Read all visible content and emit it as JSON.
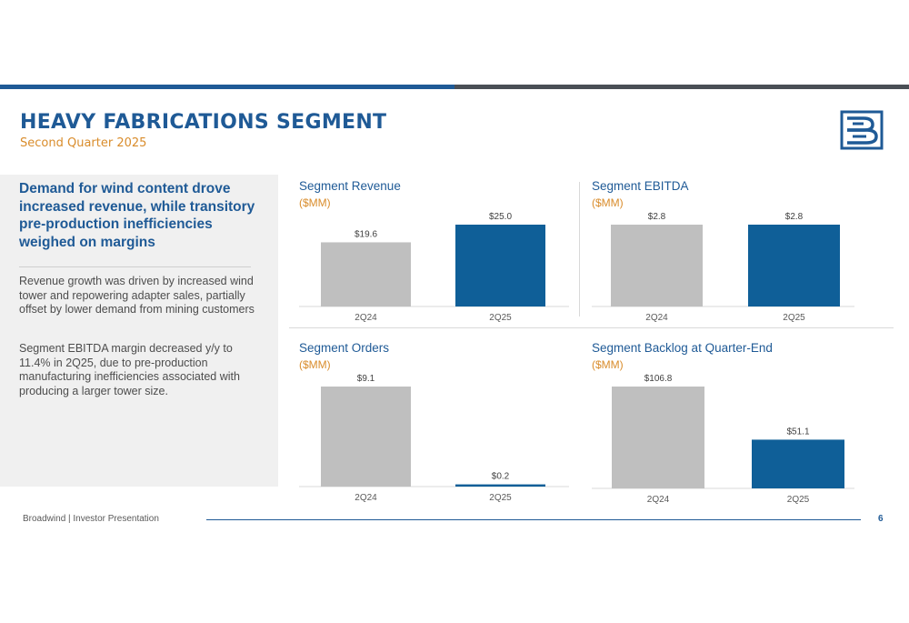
{
  "header": {
    "title": "HEAVY FABRICATIONS SEGMENT",
    "subtitle": "Second Quarter 2025"
  },
  "colors": {
    "brand_blue": "#1f5a96",
    "bar_blue": "#0f5f98",
    "bar_gray": "#bfbfbf",
    "accent_orange": "#d98c2b"
  },
  "summary": {
    "headline": "Demand for wind content drove increased revenue, while transitory pre-production inefficiencies weighed on margins",
    "paragraph1": "Revenue growth was driven by increased wind tower and repowering adapter sales, partially offset by lower demand from mining customers",
    "paragraph2": "Segment EBITDA margin decreased y/y to 11.4% in 2Q25, due to pre-production manufacturing inefficiencies associated with producing a larger tower size."
  },
  "chart_data": [
    {
      "type": "bar",
      "title": "Segment Revenue",
      "unit": "($MM)",
      "categories": [
        "2Q24",
        "2Q25"
      ],
      "values": [
        19.6,
        25.0
      ],
      "value_labels": [
        "$19.6",
        "$25.0"
      ]
    },
    {
      "type": "bar",
      "title": "Segment EBITDA",
      "unit": "($MM)",
      "categories": [
        "2Q24",
        "2Q25"
      ],
      "values": [
        2.8,
        2.8
      ],
      "value_labels": [
        "$2.8",
        "$2.8"
      ]
    },
    {
      "type": "bar",
      "title": "Segment Orders",
      "unit": "($MM)",
      "categories": [
        "2Q24",
        "2Q25"
      ],
      "values": [
        9.1,
        0.2
      ],
      "value_labels": [
        "$9.1",
        "$0.2"
      ]
    },
    {
      "type": "bar",
      "title": "Segment Backlog at Quarter-End",
      "unit": "($MM)",
      "categories": [
        "2Q24",
        "2Q25"
      ],
      "values": [
        106.8,
        51.1
      ],
      "value_labels": [
        "$106.8",
        "$51.1"
      ]
    }
  ],
  "footer": {
    "text": "Broadwind | Investor Presentation",
    "page": "6"
  }
}
